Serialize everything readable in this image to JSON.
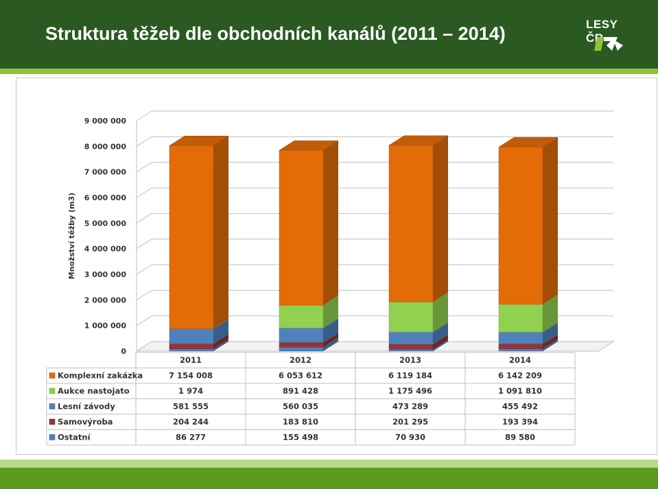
{
  "header": {
    "title": "Struktura těžeb dle obchodních kanálů (2011 – 2014)",
    "logo_text": "LESY ČR"
  },
  "colors": {
    "header_bg": "#2a5a22",
    "accent_green": "#8fc43a",
    "footer": "#5c9a1e"
  },
  "chart_data": {
    "type": "bar",
    "stacked": true,
    "three_d": true,
    "categories": [
      "2011",
      "2012",
      "2013",
      "2014"
    ],
    "ylabel": "Množství těžby (m3)",
    "ylim": [
      0,
      9000000
    ],
    "yticks": [
      "0",
      "1 000 000",
      "2 000 000",
      "3 000 000",
      "4 000 000",
      "5 000 000",
      "6 000 000",
      "7 000 000",
      "8 000 000",
      "9 000 000"
    ],
    "grid": true,
    "legend": "data-table",
    "series": [
      {
        "name": "Ostatní",
        "color": "#4f81bd",
        "values": [
          86277,
          155498,
          70930,
          89580
        ],
        "labels": [
          "86 277",
          "155 498",
          "70 930",
          "89 580"
        ]
      },
      {
        "name": "Samovýroba",
        "color": "#943634",
        "values": [
          204244,
          183810,
          201295,
          193394
        ],
        "labels": [
          "204 244",
          "183 810",
          "201 295",
          "193 394"
        ]
      },
      {
        "name": "Lesní závody",
        "color": "#4f81bd",
        "values": [
          581555,
          560035,
          473289,
          455492
        ],
        "labels": [
          "581 555",
          "560 035",
          "473 289",
          "455 492"
        ]
      },
      {
        "name": "Aukce nastojato",
        "color": "#92d050",
        "values": [
          1974,
          891428,
          1175496,
          1091810
        ],
        "labels": [
          "1 974",
          "891 428",
          "1 175 496",
          "1 091 810"
        ]
      },
      {
        "name": "Komplexní zakázka",
        "color": "#e36c09",
        "values": [
          7154008,
          6053612,
          6119184,
          6142209
        ],
        "labels": [
          "7 154 008",
          "6 053 612",
          "6 119 184",
          "6 142 209"
        ]
      }
    ],
    "table_order": [
      "Komplexní zakázka",
      "Aukce nastojato",
      "Lesní závody",
      "Samovýroba",
      "Ostatní"
    ]
  }
}
